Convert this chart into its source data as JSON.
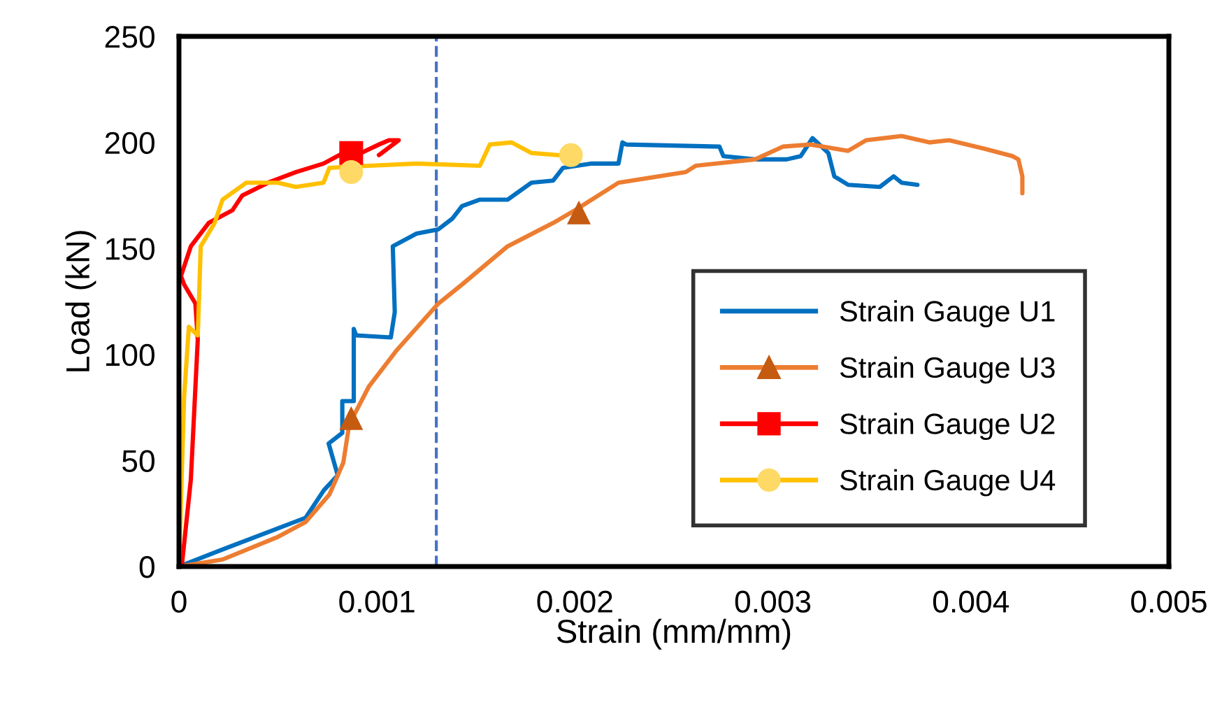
{
  "chart_data": {
    "type": "line",
    "xlabel": "Strain (mm/mm)",
    "ylabel": "Load (kN)",
    "xlim": [
      0,
      0.005
    ],
    "xticks": [
      0,
      0.001,
      0.002,
      0.003,
      0.004,
      0.005
    ],
    "ylim": [
      0,
      250
    ],
    "yticks": [
      0,
      50,
      100,
      150,
      200,
      250
    ],
    "grid": false,
    "legend": "bottom right",
    "line_style": "solid",
    "ref_lines": [
      {
        "axis": "x",
        "value": 0.0013,
        "color": "#4472c4",
        "line_style": "dashed"
      }
    ],
    "series": [
      {
        "name": "Strain Gauge U1",
        "color": "#0070c0",
        "x": [
          0,
          0.000211,
          0.00064,
          0.000732,
          0.000802,
          0.000756,
          0.000825,
          0.000825,
          0.000883,
          0.000883,
          0.000895,
          0.00107,
          0.00109,
          0.00108,
          0.0012,
          0.00131,
          0.00138,
          0.00143,
          0.00152,
          0.00166,
          0.00178,
          0.00189,
          0.00194,
          0.00208,
          0.00222,
          0.00224,
          0.00226,
          0.00273,
          0.00275,
          0.00291,
          0.00307,
          0.00314,
          0.0032,
          0.00328,
          0.00331,
          0.00338,
          0.00354,
          0.00361,
          0.00365,
          0.00373
        ],
        "values": [
          0,
          7.7,
          23,
          36,
          43,
          58,
          63,
          78,
          78,
          112,
          109,
          108,
          120,
          151,
          157,
          159,
          164,
          170,
          173,
          173,
          181,
          182,
          188,
          190,
          190,
          200,
          199,
          198,
          193.5,
          192,
          192,
          193.5,
          202,
          195,
          184,
          180,
          179,
          184,
          181,
          180
        ]
      },
      {
        "name": "Strain Gauge U3",
        "color": "#ed7d31",
        "x": [
          0,
          0.00022,
          0.0005,
          0.00064,
          0.00076,
          0.00083,
          0.00086,
          0.00096,
          0.0011,
          0.00131,
          0.00143,
          0.00166,
          0.00189,
          0.002,
          0.00222,
          0.00256,
          0.00261,
          0.00291,
          0.00305,
          0.00319,
          0.00338,
          0.00347,
          0.00365,
          0.00379,
          0.00389,
          0.00407,
          0.00421,
          0.00424,
          0.00426,
          0.00426
        ],
        "values": [
          0,
          3.3,
          14,
          21,
          34,
          49,
          67,
          85,
          102,
          124,
          133,
          151,
          162,
          168,
          181,
          186,
          189,
          192,
          198,
          199,
          196,
          201,
          203,
          200,
          201,
          197,
          193.5,
          192,
          184,
          176
        ]
      },
      {
        "type": "scatter",
        "color": "#c55a11",
        "marker": "triangle",
        "x": [
          0.00087,
          0.00202
        ],
        "values": [
          70,
          167
        ]
      },
      {
        "name": "Strain Gauge U2",
        "color": "#ff0000",
        "x": [
          1.4e-05,
          6e-05,
          9.5e-05,
          8.3e-05,
          2.6e-05,
          1e-05,
          6e-05,
          0.00015,
          0.00027,
          0.00032,
          0.00045,
          0.00059,
          0.00073,
          0.00083,
          0.00092,
          0.00101,
          0.00106,
          0.00111,
          0.00101
        ],
        "values": [
          0,
          41,
          107,
          124,
          133,
          137,
          151,
          162,
          168,
          175,
          181,
          186,
          190,
          195,
          195,
          199,
          201,
          201,
          194
        ]
      },
      {
        "type": "scatter",
        "color": "#ff0000",
        "marker": "square",
        "x": [
          0.00087
        ],
        "values": [
          195
        ]
      },
      {
        "name": "Strain Gauge U4",
        "color": "#ffc000",
        "x": [
          0,
          2.6e-05,
          5e-05,
          9.5e-05,
          0.00011,
          0.00018,
          0.00022,
          0.00034,
          0.0005,
          0.00059,
          0.00073,
          0.00076,
          0.00096,
          0.0012,
          0.00152,
          0.00157,
          0.00168,
          0.00178,
          0.00198
        ],
        "values": [
          0,
          80,
          113,
          109,
          151,
          162,
          173,
          181,
          181,
          179,
          181,
          188,
          189,
          190,
          189,
          199,
          200,
          195,
          193.5
        ]
      },
      {
        "type": "scatter",
        "color": "#ffd966",
        "marker": "circle",
        "x": [
          0.00087,
          0.00198
        ],
        "values": [
          186,
          194
        ]
      }
    ]
  }
}
